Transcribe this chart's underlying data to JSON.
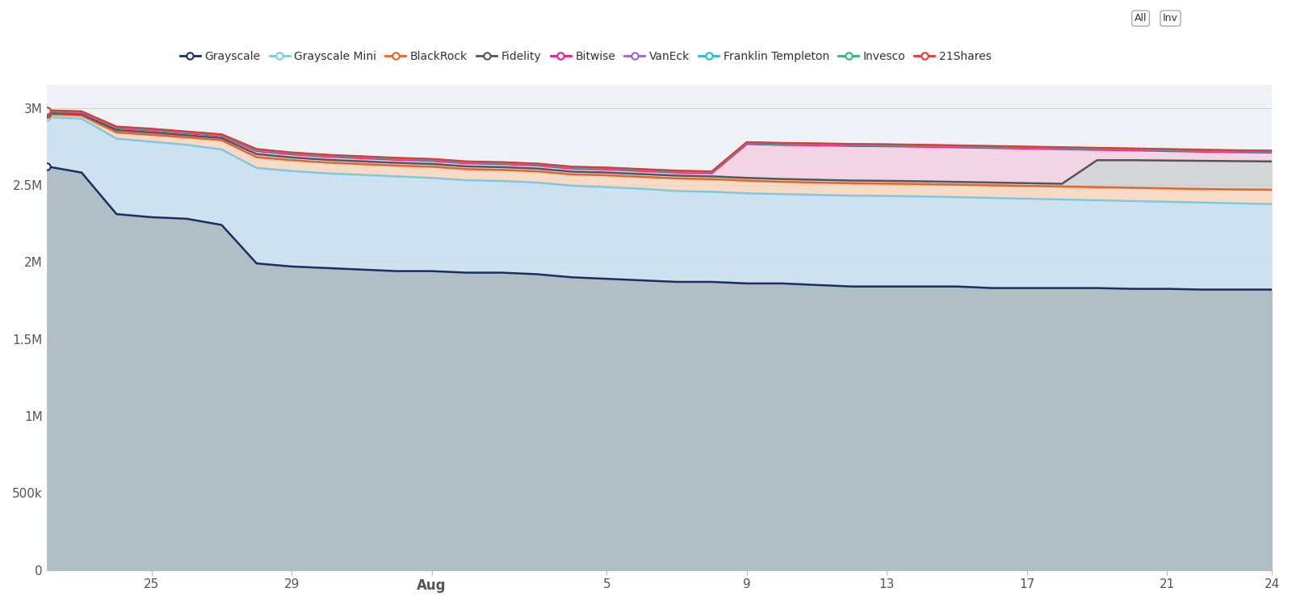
{
  "background_color": "#ffffff",
  "plot_bg_color": "#eef2f7",
  "ylim": [
    0,
    3150000
  ],
  "xlim": [
    0,
    35
  ],
  "y_ticks": [
    0,
    500000,
    1000000,
    1500000,
    2000000,
    2500000,
    3000000
  ],
  "y_tick_labels": [
    "0",
    "500k",
    "1M",
    "1.5M",
    "2M",
    "2.5M",
    "3M"
  ],
  "x_ticks_positions": [
    3,
    7,
    11,
    16,
    20,
    24,
    28,
    32,
    35
  ],
  "x_ticks_labels": [
    "25",
    "29",
    "Aug",
    "5",
    "9",
    "13",
    "17",
    "21",
    "24"
  ],
  "series": {
    "Grayscale": {
      "color": "#1a2f5e",
      "values": [
        2620000,
        2580000,
        2310000,
        2290000,
        2280000,
        2240000,
        1990000,
        1970000,
        1960000,
        1950000,
        1940000,
        1940000,
        1930000,
        1930000,
        1920000,
        1900000,
        1890000,
        1880000,
        1870000,
        1870000,
        1860000,
        1860000,
        1850000,
        1840000,
        1840000,
        1840000,
        1840000,
        1830000,
        1830000,
        1830000,
        1830000,
        1825000,
        1825000,
        1820000,
        1820000,
        1820000
      ]
    },
    "Grayscale Mini": {
      "color": "#7ec8e3",
      "values": [
        2940000,
        2930000,
        2800000,
        2780000,
        2760000,
        2730000,
        2610000,
        2590000,
        2575000,
        2565000,
        2555000,
        2545000,
        2530000,
        2525000,
        2515000,
        2495000,
        2485000,
        2475000,
        2460000,
        2455000,
        2445000,
        2440000,
        2435000,
        2430000,
        2428000,
        2425000,
        2420000,
        2415000,
        2410000,
        2405000,
        2400000,
        2395000,
        2390000,
        2385000,
        2380000,
        2375000
      ]
    },
    "BlackRock": {
      "color": "#e8622a",
      "values": [
        2958000,
        2950000,
        2840000,
        2825000,
        2808000,
        2790000,
        2680000,
        2660000,
        2645000,
        2635000,
        2625000,
        2618000,
        2602000,
        2597000,
        2588000,
        2568000,
        2562000,
        2552000,
        2542000,
        2537000,
        2527000,
        2520000,
        2515000,
        2510000,
        2508000,
        2505000,
        2501000,
        2497000,
        2493000,
        2489000,
        2485000,
        2481000,
        2477000,
        2473000,
        2470000,
        2468000
      ]
    },
    "Fidelity": {
      "color": "#555555",
      "values": [
        2968000,
        2960000,
        2855000,
        2840000,
        2822000,
        2804000,
        2700000,
        2678000,
        2663000,
        2653000,
        2643000,
        2636000,
        2620000,
        2615000,
        2606000,
        2586000,
        2580000,
        2570000,
        2560000,
        2555000,
        2545000,
        2538000,
        2533000,
        2528000,
        2526000,
        2523000,
        2519000,
        2515000,
        2511000,
        2507000,
        2660000,
        2660000,
        2658000,
        2656000,
        2654000,
        2652000
      ]
    },
    "Bitwise": {
      "color": "#e91e8c",
      "values": [
        2975000,
        2968000,
        2868000,
        2854000,
        2836000,
        2818000,
        2720000,
        2698000,
        2683000,
        2673000,
        2663000,
        2656000,
        2640000,
        2635000,
        2626000,
        2606000,
        2600000,
        2590000,
        2580000,
        2575000,
        2765000,
        2760000,
        2757000,
        2753000,
        2751000,
        2748000,
        2744000,
        2740000,
        2736000,
        2732000,
        2728000,
        2724000,
        2720000,
        2716000,
        2712000,
        2710000
      ]
    },
    "VanEck": {
      "color": "#9c64d0",
      "values": [
        2978000,
        2971000,
        2872000,
        2858000,
        2840000,
        2822000,
        2725000,
        2703000,
        2688000,
        2678000,
        2668000,
        2661000,
        2645000,
        2640000,
        2631000,
        2611000,
        2605000,
        2595000,
        2585000,
        2580000,
        2770000,
        2765000,
        2762000,
        2758000,
        2756000,
        2753000,
        2749000,
        2745000,
        2741000,
        2737000,
        2733000,
        2729000,
        2725000,
        2721000,
        2717000,
        2715000
      ]
    },
    "Franklin Templeton": {
      "color": "#26bcd7",
      "values": [
        2980000,
        2973000,
        2874000,
        2860000,
        2842000,
        2824000,
        2728000,
        2706000,
        2691000,
        2681000,
        2671000,
        2664000,
        2648000,
        2643000,
        2634000,
        2614000,
        2608000,
        2598000,
        2588000,
        2583000,
        2773000,
        2768000,
        2765000,
        2761000,
        2759000,
        2756000,
        2752000,
        2748000,
        2744000,
        2740000,
        2736000,
        2732000,
        2728000,
        2724000,
        2720000,
        2718000
      ]
    },
    "Invesco": {
      "color": "#2eb872",
      "values": [
        2982000,
        2975000,
        2876000,
        2862000,
        2844000,
        2826000,
        2730000,
        2708000,
        2693000,
        2683000,
        2673000,
        2666000,
        2650000,
        2645000,
        2636000,
        2616000,
        2610000,
        2600000,
        2590000,
        2585000,
        2775000,
        2770000,
        2767000,
        2763000,
        2761000,
        2758000,
        2754000,
        2750000,
        2746000,
        2742000,
        2738000,
        2734000,
        2730000,
        2726000,
        2722000,
        2720000
      ]
    },
    "21Shares": {
      "color": "#e53935",
      "values": [
        2984000,
        2977000,
        2878000,
        2864000,
        2846000,
        2828000,
        2732000,
        2710000,
        2695000,
        2685000,
        2675000,
        2668000,
        2652000,
        2647000,
        2638000,
        2618000,
        2612000,
        2602000,
        2592000,
        2587000,
        2777000,
        2772000,
        2769000,
        2765000,
        2763000,
        2760000,
        2756000,
        2752000,
        2748000,
        2744000,
        2740000,
        2736000,
        2732000,
        2728000,
        2724000,
        2722000
      ]
    }
  },
  "fill_scheme": {
    "Grayscale": {
      "color": "#b0bec5",
      "alpha": 1.0
    },
    "Grayscale Mini": {
      "color": "#c8dff0",
      "alpha": 0.85
    },
    "BlackRock": {
      "color": "#fad4b8",
      "alpha": 0.75
    },
    "Fidelity": {
      "color": "#c8c8c8",
      "alpha": 0.65
    },
    "Bitwise": {
      "color": "#f5c0d8",
      "alpha": 0.6
    },
    "VanEck": {
      "color": "#ddd0ee",
      "alpha": 0.5
    },
    "Franklin Templeton": {
      "color": "#b8e8f0",
      "alpha": 0.45
    },
    "Invesco": {
      "color": "#b8ecd0",
      "alpha": 0.35
    }
  },
  "legend": {
    "entries": [
      "Grayscale",
      "Grayscale Mini",
      "BlackRock",
      "Fidelity",
      "Bitwise",
      "VanEck",
      "Franklin Templeton",
      "Invesco",
      "21Shares"
    ],
    "colors": [
      "#1a2f5e",
      "#7ec8e3",
      "#e8622a",
      "#555555",
      "#e91e8c",
      "#9c64d0",
      "#26bcd7",
      "#2eb872",
      "#e53935"
    ]
  }
}
